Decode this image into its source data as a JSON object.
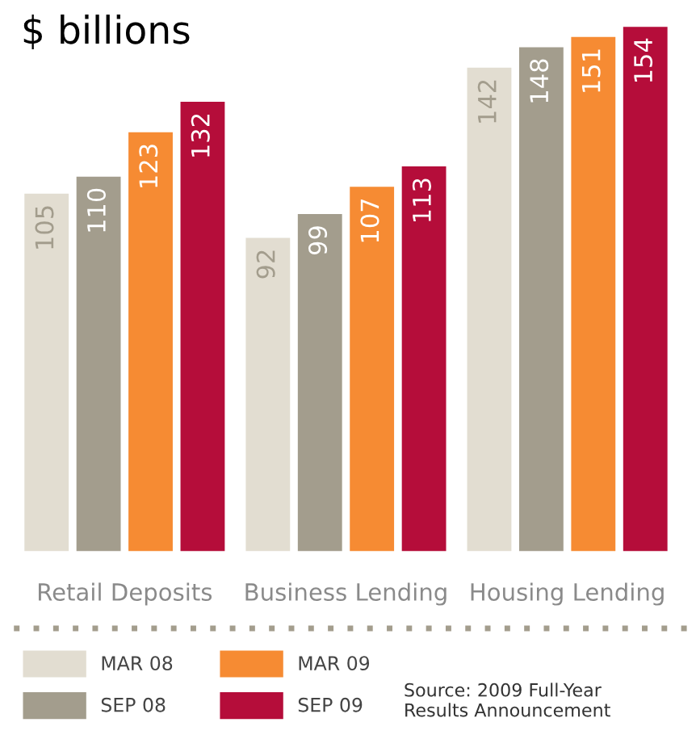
{
  "chart_data": {
    "type": "bar",
    "title": "$ billions",
    "categories": [
      "Retail Deposits",
      "Business Lending",
      "Housing Lending"
    ],
    "series": [
      {
        "name": "MAR 08",
        "color": "#e2ddd1",
        "values": [
          105,
          92,
          142
        ]
      },
      {
        "name": "SEP 08",
        "color": "#a39d8d",
        "values": [
          110,
          99,
          148
        ]
      },
      {
        "name": "MAR 09",
        "color": "#f68b33",
        "values": [
          123,
          107,
          151
        ]
      },
      {
        "name": "SEP 09",
        "color": "#b50d3a",
        "values": [
          132,
          113,
          154
        ]
      }
    ],
    "data_labels": true,
    "legend": "bottom left",
    "grid": false,
    "annotations": [
      "Source: 2009 Full-Year\nResults Announcement"
    ]
  }
}
